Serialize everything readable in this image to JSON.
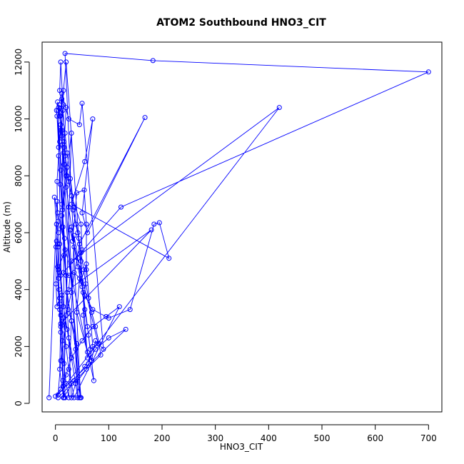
{
  "chart_data": {
    "type": "line",
    "title": "ATOM2 Southbound HNO3_CIT",
    "xlabel": "HNO3_CIT",
    "ylabel": "Altitude (m)",
    "xlim": [
      -25,
      725
    ],
    "ylim": [
      -300,
      12700
    ],
    "xticks": [
      0,
      100,
      200,
      300,
      400,
      500,
      600,
      700
    ],
    "yticks": [
      0,
      2000,
      4000,
      6000,
      8000,
      10000,
      12000
    ],
    "grid": false,
    "markers": "open-circle",
    "line_color": "#0000ff",
    "series": [
      {
        "points": [
          [
            -12,
            200
          ],
          [
            3,
            7100
          ],
          [
            5,
            6400
          ],
          [
            2,
            5700
          ],
          [
            1,
            4200
          ],
          [
            3,
            3400
          ],
          [
            8,
            3700
          ],
          [
            10,
            2700
          ],
          [
            14,
            600
          ],
          [
            18,
            200
          ],
          [
            12,
            10700
          ],
          [
            15,
            10500
          ],
          [
            20,
            10400
          ],
          [
            16,
            9000
          ],
          [
            22,
            8000
          ],
          [
            30,
            7300
          ],
          [
            48,
            6300
          ],
          [
            50,
            5400
          ],
          [
            40,
            3200
          ],
          [
            60,
            1800
          ],
          [
            68,
            1500
          ],
          [
            75,
            2200
          ],
          [
            90,
            1900
          ],
          [
            50,
            10550
          ],
          [
            45,
            9800
          ],
          [
            25,
            10000
          ],
          [
            12,
            10900
          ],
          [
            8,
            9200
          ],
          [
            10,
            8200
          ],
          [
            13,
            6800
          ],
          [
            17,
            5800
          ],
          [
            20,
            4500
          ],
          [
            24,
            3300
          ],
          [
            30,
            2900
          ],
          [
            40,
            2100
          ],
          [
            47,
            200
          ],
          [
            18,
            12300
          ],
          [
            183,
            12050
          ],
          [
            700,
            11650
          ],
          [
            123,
            6900
          ],
          [
            15,
            4600
          ],
          [
            25,
            4500
          ],
          [
            35,
            4600
          ],
          [
            45,
            4400
          ],
          [
            55,
            3800
          ],
          [
            70,
            3300
          ],
          [
            100,
            3000
          ],
          [
            140,
            3300
          ],
          [
            185,
            6300
          ],
          [
            195,
            6350
          ],
          [
            213,
            5100
          ],
          [
            30,
            7000
          ],
          [
            55,
            8500
          ],
          [
            70,
            10000
          ],
          [
            50,
            6700
          ],
          [
            60,
            6000
          ],
          [
            168,
            10050
          ],
          [
            45,
            5600
          ],
          [
            30,
            3900
          ],
          [
            20,
            3100
          ],
          [
            10,
            1500
          ],
          [
            5,
            300
          ],
          [
            420,
            10400
          ],
          [
            30,
            5000
          ],
          [
            25,
            4000
          ],
          [
            180,
            6100
          ],
          [
            10,
            2800
          ],
          [
            8,
            1200
          ],
          [
            15,
            200
          ],
          [
            30,
            9500
          ],
          [
            20,
            8000
          ],
          [
            12,
            6200
          ],
          [
            18,
            5400
          ],
          [
            5,
            4700
          ],
          [
            8,
            3300
          ],
          [
            22,
            2600
          ],
          [
            30,
            1600
          ],
          [
            42,
            200
          ],
          [
            10,
            12000
          ],
          [
            8,
            11000
          ],
          [
            18,
            9500
          ],
          [
            22,
            8800
          ],
          [
            28,
            7900
          ],
          [
            35,
            6900
          ],
          [
            42,
            6000
          ],
          [
            48,
            5000
          ],
          [
            52,
            3900
          ],
          [
            60,
            2700
          ],
          [
            65,
            1900
          ],
          [
            80,
            2100
          ],
          [
            28,
            6100
          ],
          [
            32,
            5700
          ],
          [
            40,
            7400
          ],
          [
            54,
            7500
          ],
          [
            58,
            6300
          ],
          [
            58,
            4700
          ],
          [
            52,
            3100
          ],
          [
            60,
            1600
          ],
          [
            20,
            12000
          ],
          [
            15,
            11000
          ],
          [
            14,
            10300
          ],
          [
            10,
            9600
          ],
          [
            6,
            8700
          ],
          [
            3,
            7800
          ],
          [
            4,
            6700
          ],
          [
            6,
            6000
          ],
          [
            5,
            5500
          ],
          [
            8,
            4600
          ],
          [
            12,
            3800
          ],
          [
            14,
            3000
          ],
          [
            20,
            2000
          ],
          [
            25,
            1200
          ],
          [
            30,
            700
          ],
          [
            35,
            200
          ],
          [
            120,
            3400
          ],
          [
            95,
            3050
          ],
          [
            70,
            2700
          ],
          [
            50,
            2200
          ],
          [
            30,
            1600
          ],
          [
            20,
            1000
          ],
          [
            10,
            500
          ],
          [
            0,
            250
          ],
          [
            132,
            2600
          ],
          [
            100,
            2300
          ],
          [
            75,
            1900
          ],
          [
            55,
            1300
          ],
          [
            35,
            800
          ],
          [
            15,
            200
          ],
          [
            5,
            10300
          ],
          [
            8,
            10100
          ],
          [
            12,
            9400
          ],
          [
            15,
            8800
          ],
          [
            20,
            8000
          ],
          [
            12,
            6600
          ],
          [
            8,
            5600
          ],
          [
            10,
            4500
          ],
          [
            15,
            3400
          ],
          [
            25,
            2300
          ],
          [
            48,
            200
          ],
          [
            2,
            10300
          ],
          [
            3,
            10100
          ],
          [
            6,
            9000
          ],
          [
            9,
            7700
          ],
          [
            12,
            7000
          ],
          [
            14,
            6200
          ],
          [
            16,
            5200
          ],
          [
            22,
            3900
          ],
          [
            30,
            2900
          ],
          [
            38,
            1900
          ],
          [
            45,
            200
          ],
          [
            7,
            10500
          ],
          [
            10,
            9800
          ],
          [
            13,
            9100
          ],
          [
            16,
            8400
          ],
          [
            20,
            7600
          ],
          [
            25,
            6900
          ],
          [
            30,
            6200
          ],
          [
            35,
            5500
          ],
          [
            42,
            4800
          ],
          [
            50,
            4100
          ],
          [
            55,
            3300
          ],
          [
            62,
            2400
          ],
          [
            68,
            1500
          ],
          [
            72,
            800
          ],
          [
            -2,
            7250
          ],
          [
            2,
            6300
          ],
          [
            4,
            5600
          ],
          [
            6,
            4400
          ],
          [
            8,
            3500
          ],
          [
            10,
            2500
          ],
          [
            12,
            1500
          ],
          [
            14,
            800
          ],
          [
            16,
            200
          ],
          [
            1,
            5500
          ],
          [
            4,
            4800
          ],
          [
            7,
            4000
          ],
          [
            10,
            3100
          ],
          [
            13,
            2200
          ],
          [
            16,
            1400
          ],
          [
            20,
            700
          ],
          [
            25,
            200
          ],
          [
            35,
            5900
          ],
          [
            42,
            5100
          ],
          [
            48,
            4300
          ],
          [
            58,
            4900
          ],
          [
            70,
            2000
          ],
          [
            62,
            1400
          ],
          [
            58,
            1200
          ],
          [
            38,
            700
          ],
          [
            30,
            200
          ],
          [
            4,
            10600
          ],
          [
            6,
            10400
          ],
          [
            9,
            10100
          ],
          [
            12,
            9600
          ],
          [
            16,
            9200
          ],
          [
            18,
            8700
          ],
          [
            22,
            8300
          ],
          [
            25,
            7800
          ],
          [
            30,
            7300
          ],
          [
            33,
            6800
          ],
          [
            38,
            6300
          ],
          [
            44,
            5800
          ],
          [
            48,
            5300
          ],
          [
            53,
            4700
          ],
          [
            57,
            4200
          ],
          [
            62,
            3700
          ],
          [
            68,
            3200
          ],
          [
            75,
            2700
          ],
          [
            82,
            2100
          ],
          [
            85,
            1700
          ],
          [
            5,
            200
          ]
        ]
      }
    ]
  }
}
